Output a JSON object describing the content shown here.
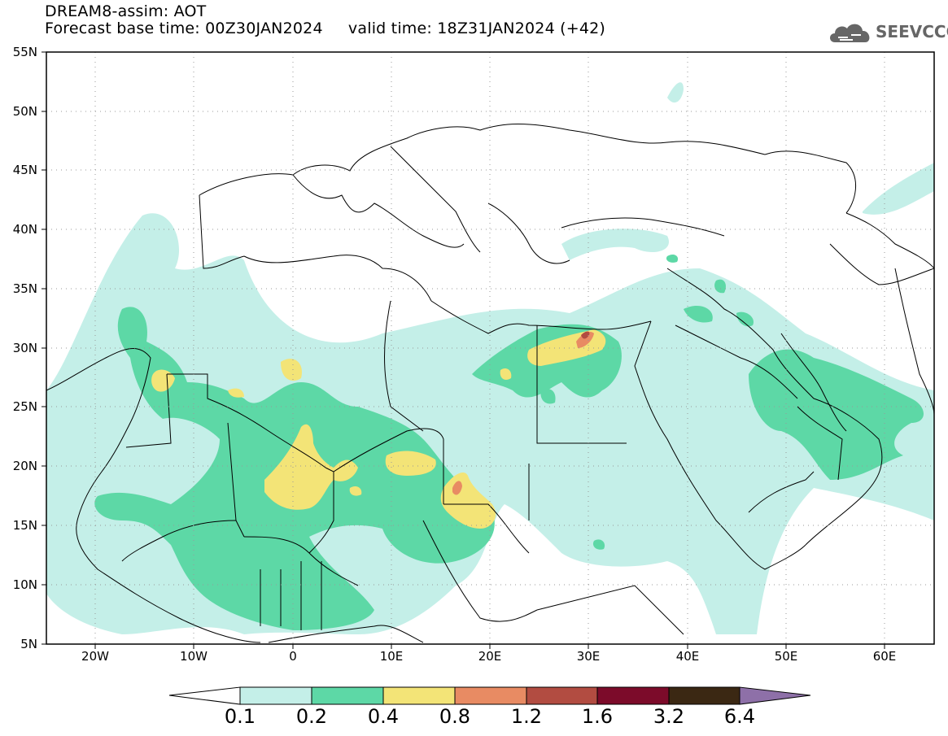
{
  "header": {
    "line1": "DREAM8-assim: AOT",
    "line2": "Forecast base time: 00Z30JAN2024     valid time: 18Z31JAN2024 (+42)"
  },
  "logo": {
    "text": "SEEVCCC",
    "icon": "cloud-logo-icon"
  },
  "map": {
    "lat_labels": [
      "55N",
      "50N",
      "45N",
      "40N",
      "35N",
      "30N",
      "25N",
      "20N",
      "15N",
      "10N",
      "5N"
    ],
    "lon_labels": [
      "20W",
      "10W",
      "0",
      "10E",
      "20E",
      "30E",
      "40E",
      "50E",
      "60E"
    ],
    "lat_range": [
      5,
      55
    ],
    "lon_range": [
      -25,
      65
    ]
  },
  "colorbar": {
    "labels": [
      "0.1",
      "0.2",
      "0.4",
      "0.8",
      "1.2",
      "1.6",
      "3.2",
      "6.4"
    ],
    "colors": [
      "#c4efe8",
      "#5dd8a6",
      "#f3e477",
      "#e88b63",
      "#b24c41",
      "#7c0b2a",
      "#3b2813",
      "#8e70a8"
    ]
  }
}
